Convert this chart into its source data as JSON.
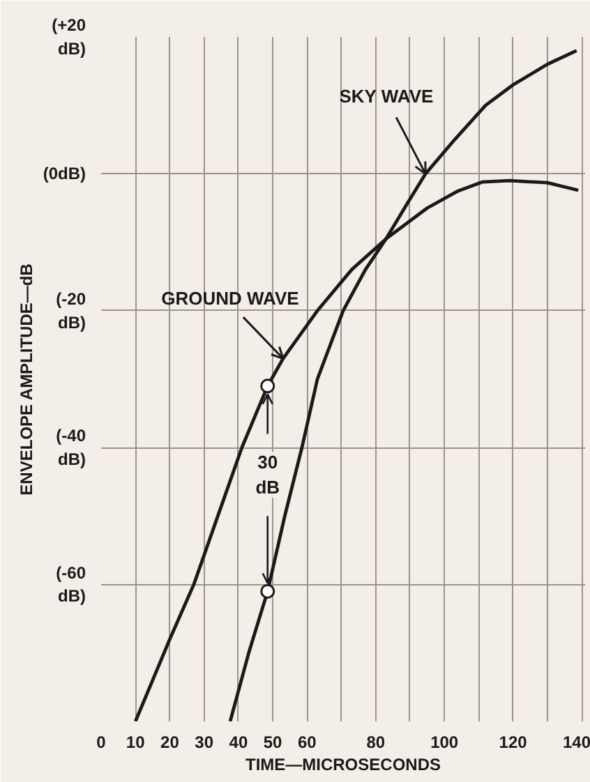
{
  "chart_data": {
    "type": "line",
    "xlabel": "TIME—MICROSECONDS",
    "ylabel": "ENVELOPE AMPLITUDE—dB",
    "xlim": [
      0,
      141
    ],
    "ylim": [
      -80,
      20
    ],
    "xticks": [
      0,
      10,
      20,
      30,
      40,
      50,
      60,
      {
        "value": 70,
        "label": null
      },
      80,
      {
        "value": 90,
        "label": null
      },
      100,
      {
        "value": 110,
        "label": null
      },
      120,
      {
        "value": 130,
        "label": null
      },
      140
    ],
    "yticks": [
      {
        "value": -80,
        "label": null
      },
      {
        "value": -60,
        "label": "(-60\ndB)"
      },
      {
        "value": -40,
        "label": "(-40\ndB)"
      },
      {
        "value": -20,
        "label": "(-20\ndB)"
      },
      {
        "value": 0,
        "label": "(0dB)"
      },
      {
        "value": 20,
        "label": "(+20\ndB)"
      }
    ],
    "grid": true,
    "legend": false,
    "line_style": "solid",
    "marker": "none",
    "series": [
      {
        "name": "GROUND WAVE",
        "color": "#1a1a1a",
        "x": [
          10,
          20,
          27,
          34,
          41,
          48.5,
          53,
          63,
          73,
          83,
          95,
          104,
          111,
          119,
          130,
          139
        ],
        "values": [
          -80,
          -68,
          -60,
          -50,
          -40,
          -31,
          -27,
          -20,
          -14,
          -9.5,
          -5,
          -2.5,
          -1.2,
          -1,
          -1.3,
          -2.4
        ]
      },
      {
        "name": "SKY WAVE",
        "color": "#1a1a1a",
        "x": [
          37.6,
          43,
          48.5,
          53.5,
          58.5,
          63,
          70.5,
          77,
          83,
          89,
          94.5,
          103,
          112,
          120,
          130,
          138.5
        ],
        "values": [
          -80,
          -70,
          -61,
          -50,
          -40,
          -30,
          -20,
          -14,
          -9.5,
          -4.5,
          0,
          5,
          10,
          13,
          16,
          18
        ]
      },
      {
        "type": "scatter",
        "marker": "circle",
        "color": "#1a1a1a",
        "x": [
          48.5,
          48.5
        ],
        "values": [
          -31,
          -61
        ]
      }
    ],
    "annotations": [
      {
        "text": "30 dB",
        "x": 48.5,
        "y": -44
      }
    ]
  }
}
